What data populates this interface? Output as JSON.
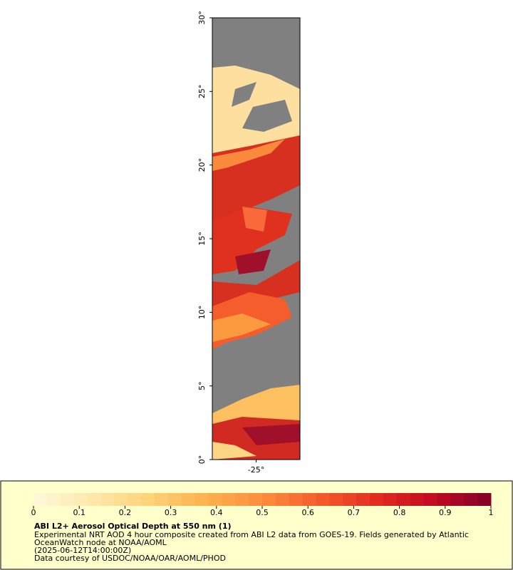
{
  "map": {
    "xlim": [
      -28,
      -22
    ],
    "ylim": [
      0,
      30
    ],
    "xticks": [
      {
        "value": -25,
        "label": "-25°"
      }
    ],
    "yticks": [
      {
        "value": 0,
        "label": "0°"
      },
      {
        "value": 5,
        "label": "5°"
      },
      {
        "value": 10,
        "label": "10°"
      },
      {
        "value": 15,
        "label": "15°"
      },
      {
        "value": 20,
        "label": "20°"
      },
      {
        "value": 25,
        "label": "25°"
      },
      {
        "value": 30,
        "label": "30°"
      }
    ]
  },
  "colorbar": {
    "lim": [
      0,
      1
    ],
    "ticks": [
      0,
      {
        "value": 0.1,
        "label": "0.1"
      },
      {
        "value": 0.2,
        "label": "0.2"
      },
      {
        "value": 0.3,
        "label": "0.3"
      },
      {
        "value": 0.4,
        "label": "0.4"
      },
      {
        "value": 0.5,
        "label": "0.5"
      },
      {
        "value": 0.6,
        "label": "0.6"
      },
      {
        "value": 0.7,
        "label": "0.7"
      },
      {
        "value": 0.8,
        "label": "0.8"
      },
      {
        "value": 0.9,
        "label": "0.9"
      },
      1
    ],
    "colormap": [
      "#fff9dc",
      "#ffe8ac",
      "#fed37a",
      "#fdb24e",
      "#fc8e3d",
      "#f55c2c",
      "#e22c1f",
      "#c20a22",
      "#800026"
    ],
    "steps": 34
  },
  "legend": {
    "title": "ABI L2+ Aerosol Optical Depth at 550 nm (1)",
    "lines": [
      "Experimental NRT AOD 4 hour composite created from ABI L2 data from GOES-19. Fields generated by Atlantic",
      "OceanWatch node at NOAA/AOML",
      "(2025-06-12T14:00:00Z)",
      "Data courtesy of USDOC/NOAA/OAR/AOML/PHOD"
    ]
  }
}
